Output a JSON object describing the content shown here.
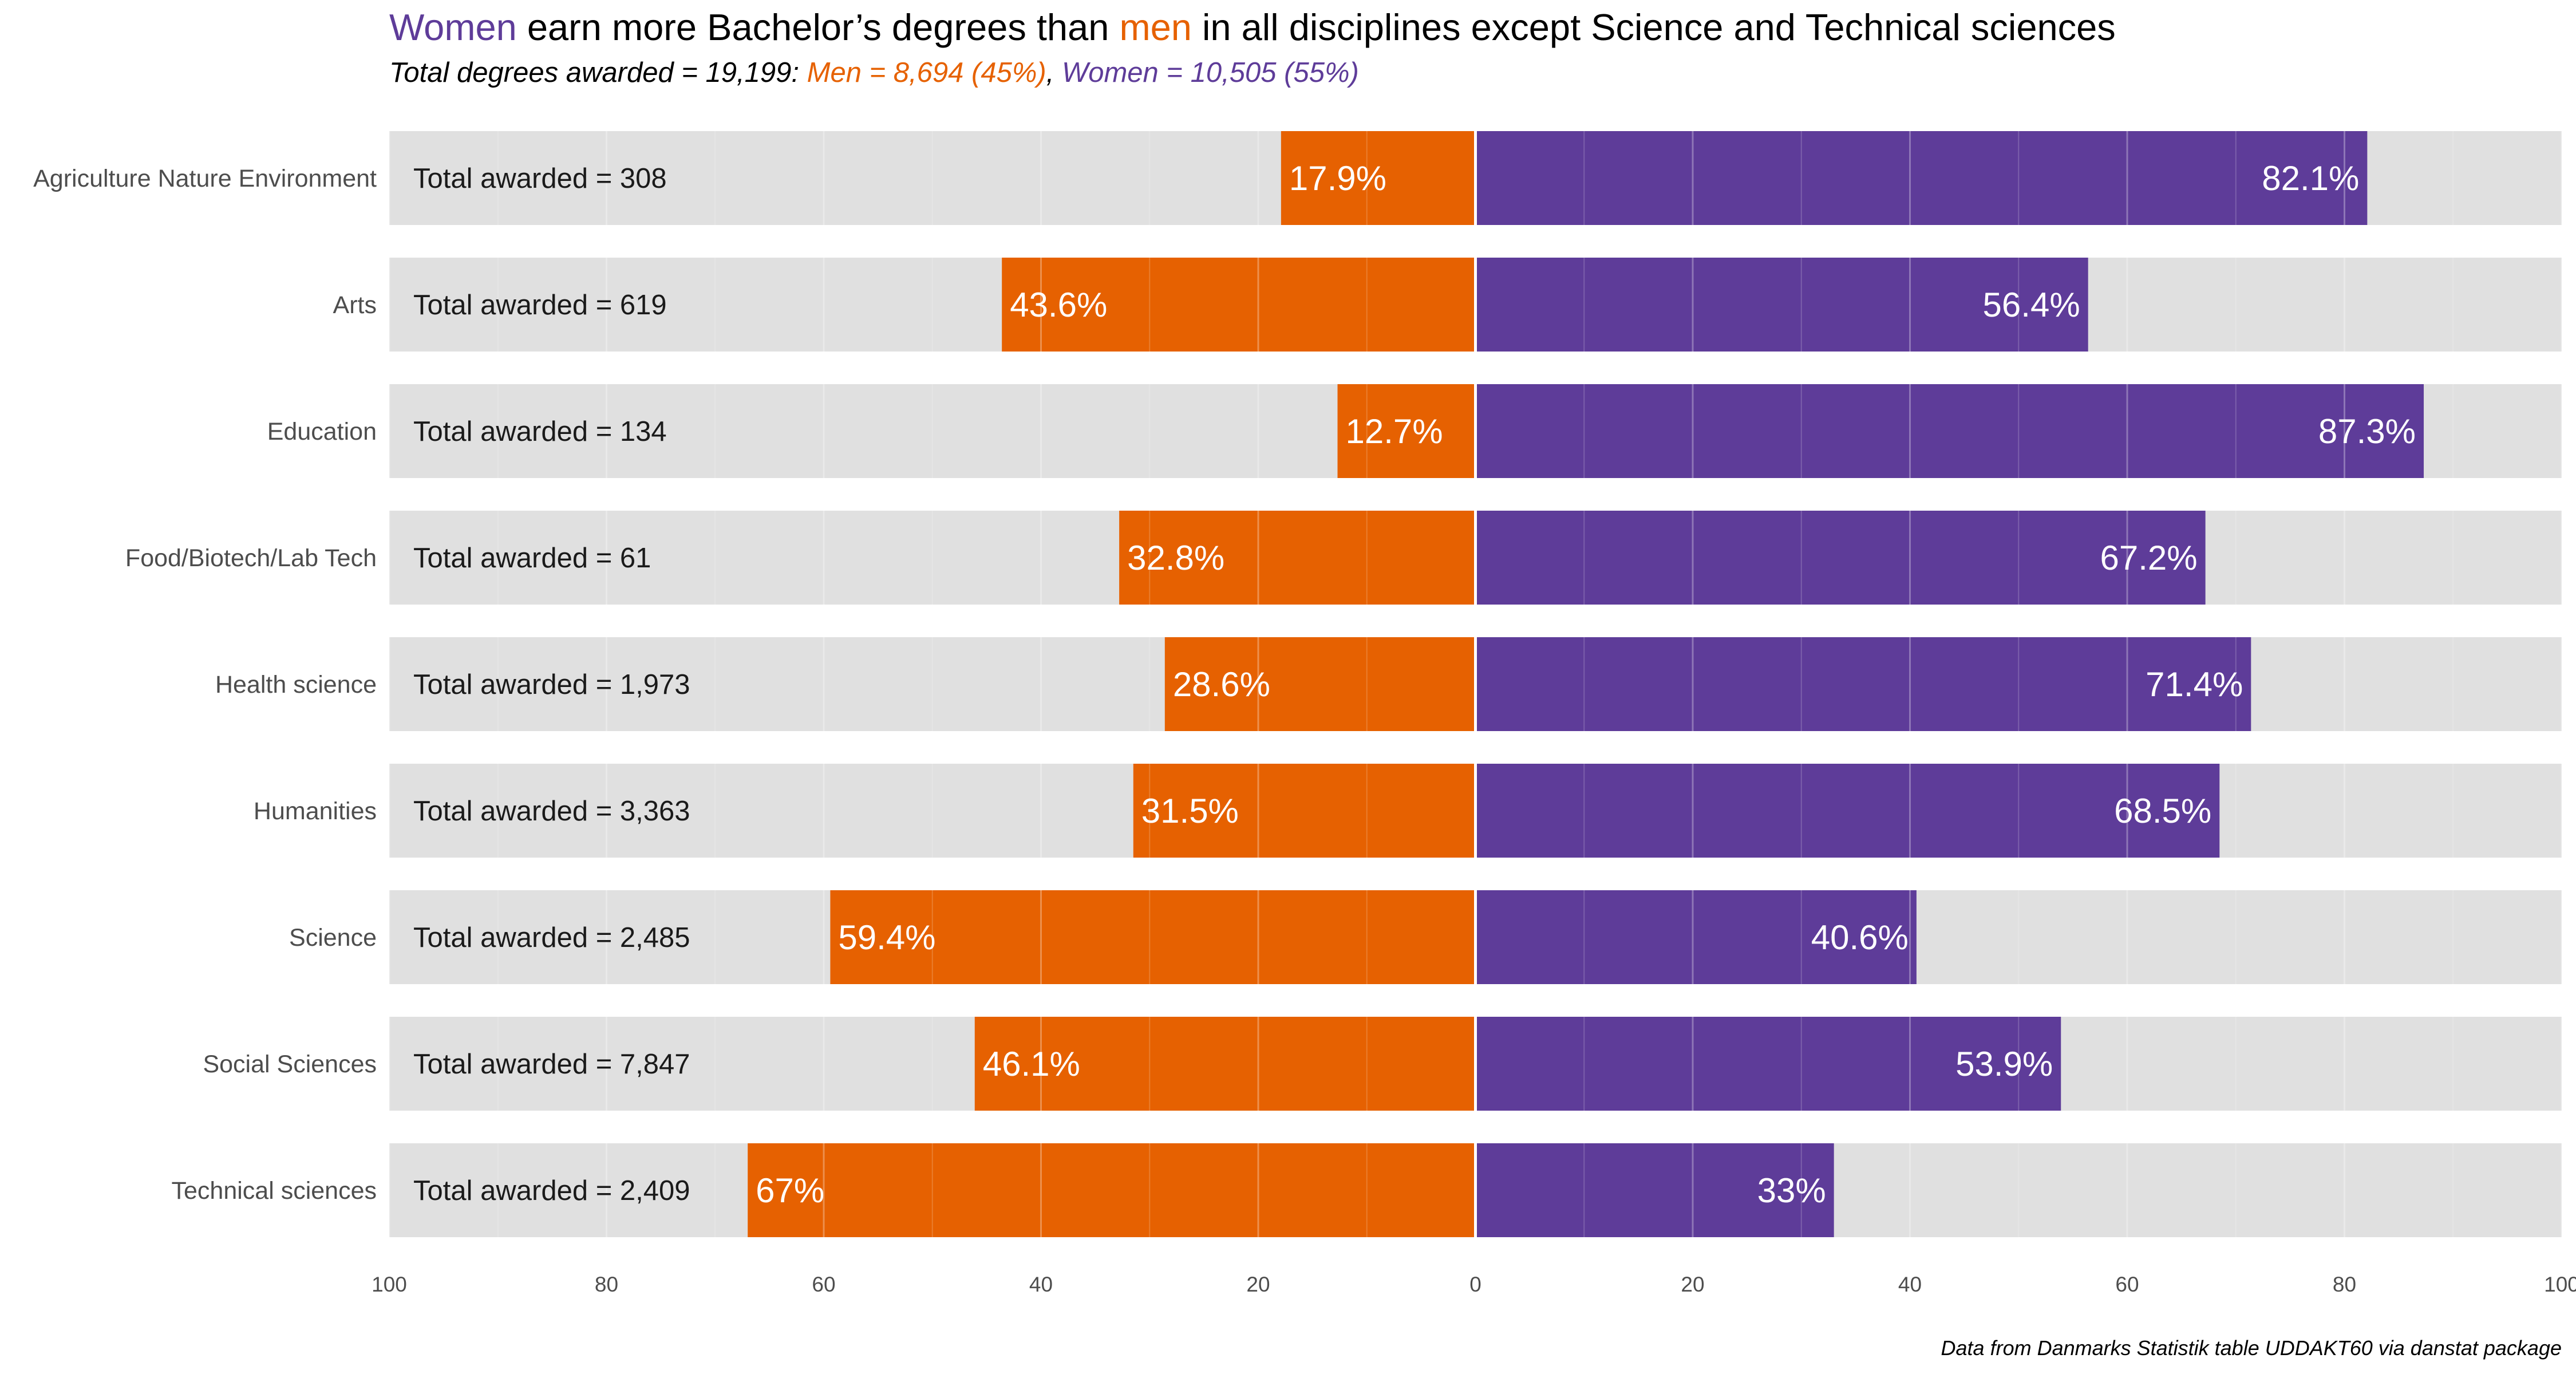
{
  "title": {
    "women": "Women",
    "part1": " earn more Bachelor’s degrees than ",
    "men": "men",
    "part2": " in all disciplines except Science and Technical sciences"
  },
  "subtitle": {
    "total": "Total degrees awarded = 19,199: ",
    "men": "Men = 8,694 (45%)",
    "sep": ", ",
    "women": "Women = 10,505 (55%)"
  },
  "caption": "Data from Danmarks Statistik table UDDAKT60 via danstat package",
  "colors": {
    "men": "#e66101",
    "women": "#5e3c99",
    "background_bar": "#e0e0e0",
    "grid": "#ebebeb"
  },
  "chart_data": {
    "type": "bar",
    "orientation": "horizontal-diverging",
    "categories": [
      "Agriculture Nature Environment",
      "Arts",
      "Education",
      "Food/Biotech/Lab Tech",
      "Health science",
      "Humanities",
      "Science",
      "Social Sciences",
      "Technical sciences"
    ],
    "totals": [
      "Total awarded = 308",
      "Total awarded = 619",
      "Total awarded = 134",
      "Total awarded = 61",
      "Total awarded = 1,973",
      "Total awarded = 3,363",
      "Total awarded = 2,485",
      "Total awarded = 7,847",
      "Total awarded = 2,409"
    ],
    "series": [
      {
        "key": "men",
        "values": [
          17.9,
          43.6,
          12.7,
          32.8,
          28.6,
          31.5,
          59.4,
          46.1,
          67
        ],
        "labels": [
          "17.9%",
          "43.6%",
          "12.7%",
          "32.8%",
          "28.6%",
          "31.5%",
          "59.4%",
          "46.1%",
          "67%"
        ]
      },
      {
        "key": "women",
        "values": [
          82.1,
          56.4,
          87.3,
          67.2,
          71.4,
          68.5,
          40.6,
          53.9,
          33
        ],
        "labels": [
          "82.1%",
          "56.4%",
          "87.3%",
          "67.2%",
          "71.4%",
          "68.5%",
          "40.6%",
          "53.9%",
          "33%"
        ]
      }
    ],
    "xlim": [
      -100,
      100
    ],
    "x_ticks": [
      -100,
      -80,
      -60,
      -40,
      -20,
      0,
      20,
      40,
      60,
      80,
      100
    ],
    "x_tick_labels": [
      "100",
      "80",
      "60",
      "40",
      "20",
      "0",
      "20",
      "40",
      "60",
      "80",
      "100"
    ],
    "grid": true,
    "legend": "none"
  }
}
